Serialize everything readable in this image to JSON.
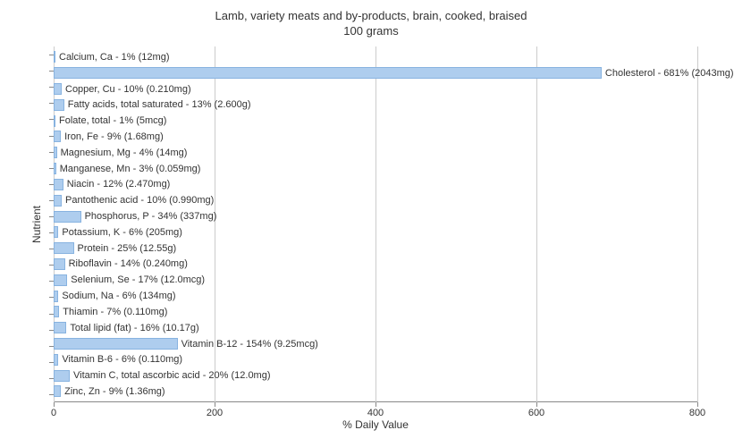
{
  "chart": {
    "type": "horizontal-bar",
    "title": "Lamb, variety meats and by-products, brain, cooked, braised",
    "subtitle": "100 grams",
    "x_axis_label": "% Daily Value",
    "y_axis_label": "Nutrient",
    "xlim": [
      0,
      800
    ],
    "x_ticks": [
      0,
      200,
      400,
      600,
      800
    ],
    "background_color": "#ffffff",
    "grid_color": "#cccccc",
    "bar_color": "#aecdee",
    "bar_border_color": "#88b3e0",
    "title_fontsize": 13,
    "label_fontsize": 12,
    "tick_fontsize": 11,
    "bar_label_fontsize": 11,
    "nutrients": [
      {
        "name": "Calcium, Ca",
        "percent": 1,
        "amount": "12mg",
        "label": "Calcium, Ca - 1% (12mg)"
      },
      {
        "name": "Cholesterol",
        "percent": 681,
        "amount": "2043mg",
        "label": "Cholesterol - 681% (2043mg)"
      },
      {
        "name": "Copper, Cu",
        "percent": 10,
        "amount": "0.210mg",
        "label": "Copper, Cu - 10% (0.210mg)"
      },
      {
        "name": "Fatty acids, total saturated",
        "percent": 13,
        "amount": "2.600g",
        "label": "Fatty acids, total saturated - 13% (2.600g)"
      },
      {
        "name": "Folate, total",
        "percent": 1,
        "amount": "5mcg",
        "label": "Folate, total - 1% (5mcg)"
      },
      {
        "name": "Iron, Fe",
        "percent": 9,
        "amount": "1.68mg",
        "label": "Iron, Fe - 9% (1.68mg)"
      },
      {
        "name": "Magnesium, Mg",
        "percent": 4,
        "amount": "14mg",
        "label": "Magnesium, Mg - 4% (14mg)"
      },
      {
        "name": "Manganese, Mn",
        "percent": 3,
        "amount": "0.059mg",
        "label": "Manganese, Mn - 3% (0.059mg)"
      },
      {
        "name": "Niacin",
        "percent": 12,
        "amount": "2.470mg",
        "label": "Niacin - 12% (2.470mg)"
      },
      {
        "name": "Pantothenic acid",
        "percent": 10,
        "amount": "0.990mg",
        "label": "Pantothenic acid - 10% (0.990mg)"
      },
      {
        "name": "Phosphorus, P",
        "percent": 34,
        "amount": "337mg",
        "label": "Phosphorus, P - 34% (337mg)"
      },
      {
        "name": "Potassium, K",
        "percent": 6,
        "amount": "205mg",
        "label": "Potassium, K - 6% (205mg)"
      },
      {
        "name": "Protein",
        "percent": 25,
        "amount": "12.55g",
        "label": "Protein - 25% (12.55g)"
      },
      {
        "name": "Riboflavin",
        "percent": 14,
        "amount": "0.240mg",
        "label": "Riboflavin - 14% (0.240mg)"
      },
      {
        "name": "Selenium, Se",
        "percent": 17,
        "amount": "12.0mcg",
        "label": "Selenium, Se - 17% (12.0mcg)"
      },
      {
        "name": "Sodium, Na",
        "percent": 6,
        "amount": "134mg",
        "label": "Sodium, Na - 6% (134mg)"
      },
      {
        "name": "Thiamin",
        "percent": 7,
        "amount": "0.110mg",
        "label": "Thiamin - 7% (0.110mg)"
      },
      {
        "name": "Total lipid (fat)",
        "percent": 16,
        "amount": "10.17g",
        "label": "Total lipid (fat) - 16% (10.17g)"
      },
      {
        "name": "Vitamin B-12",
        "percent": 154,
        "amount": "9.25mcg",
        "label": "Vitamin B-12 - 154% (9.25mcg)"
      },
      {
        "name": "Vitamin B-6",
        "percent": 6,
        "amount": "0.110mg",
        "label": "Vitamin B-6 - 6% (0.110mg)"
      },
      {
        "name": "Vitamin C, total ascorbic acid",
        "percent": 20,
        "amount": "12.0mg",
        "label": "Vitamin C, total ascorbic acid - 20% (12.0mg)"
      },
      {
        "name": "Zinc, Zn",
        "percent": 9,
        "amount": "1.36mg",
        "label": "Zinc, Zn - 9% (1.36mg)"
      }
    ]
  }
}
